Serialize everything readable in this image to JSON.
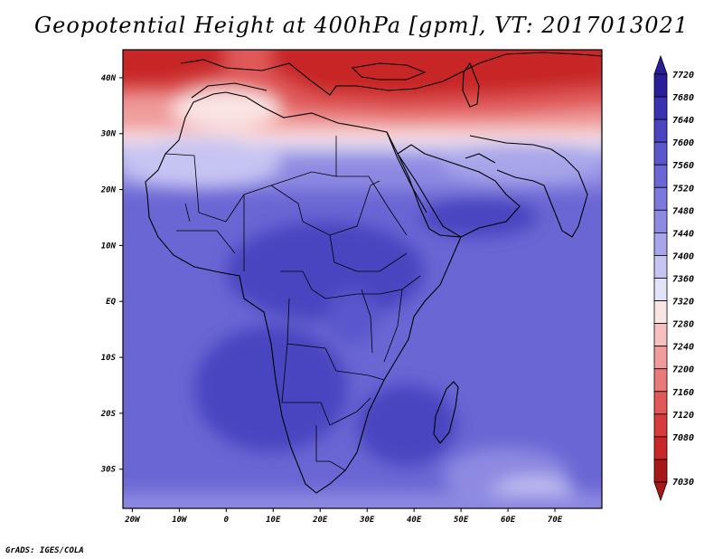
{
  "title": "Geopotential Height at 400hPa [gpm], VT: 2017013021",
  "footer": "GrADS: IGES/COLA",
  "map": {
    "lon_range": [
      -22,
      80
    ],
    "lat_range": [
      -37,
      45
    ],
    "lat_ticks": [
      {
        "value": 40,
        "label": "40N"
      },
      {
        "value": 30,
        "label": "30N"
      },
      {
        "value": 20,
        "label": "20N"
      },
      {
        "value": 10,
        "label": "10N"
      },
      {
        "value": 0,
        "label": "EQ"
      },
      {
        "value": -10,
        "label": "10S"
      },
      {
        "value": -20,
        "label": "20S"
      },
      {
        "value": -30,
        "label": "30S"
      }
    ],
    "lon_ticks": [
      {
        "value": -20,
        "label": "20W"
      },
      {
        "value": -10,
        "label": "10W"
      },
      {
        "value": 0,
        "label": "0"
      },
      {
        "value": 10,
        "label": "10E"
      },
      {
        "value": 20,
        "label": "20E"
      },
      {
        "value": 30,
        "label": "30E"
      },
      {
        "value": 40,
        "label": "40E"
      },
      {
        "value": 50,
        "label": "50E"
      },
      {
        "value": 60,
        "label": "60E"
      },
      {
        "value": 70,
        "label": "70E"
      }
    ]
  },
  "colorbar": {
    "levels": [
      "7720",
      "7680",
      "7640",
      "7600",
      "7560",
      "7520",
      "7480",
      "7440",
      "7400",
      "7360",
      "7320",
      "7280",
      "7240",
      "7200",
      "7160",
      "7120",
      "7080",
      "7030"
    ],
    "colors": [
      "#2a1e9a",
      "#3a32b0",
      "#4a44c0",
      "#5a56cc",
      "#6a66d4",
      "#7c78dc",
      "#8e8ae2",
      "#a8a6ea",
      "#c6c4f2",
      "#e2e2f8",
      "#fbe4e4",
      "#f6c0c0",
      "#f09c9c",
      "#e87a7a",
      "#e05858",
      "#d63c3c",
      "#c82828",
      "#a81818"
    ]
  }
}
